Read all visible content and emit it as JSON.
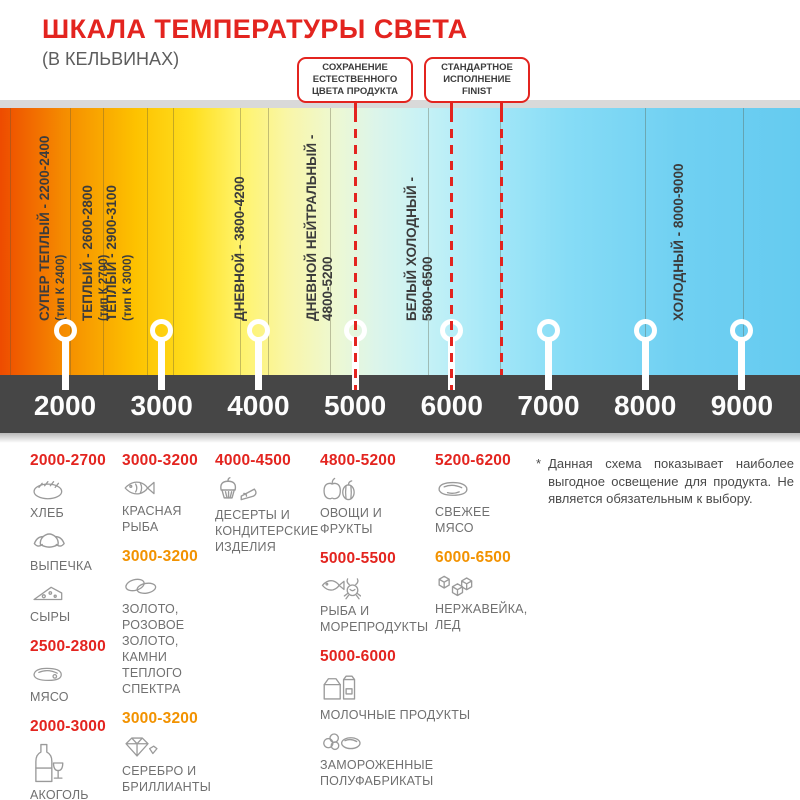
{
  "header": {
    "title": "ШКАЛА ТЕМПЕРАТУРЫ СВЕТА",
    "subtitle": "(В КЕЛЬВИНАХ)"
  },
  "callouts": [
    {
      "text": "СОХРАНЕНИЕ\nЕСТЕСТВЕННОГО\nЦВЕТА ПРОДУКТА"
    },
    {
      "text": "СТАНДАРТНОЕ\nИСПОЛНЕНИЕ\nFINIST"
    }
  ],
  "scale": {
    "unit": "Кельвины",
    "min": 2000,
    "max": 9000,
    "ticks": [
      "2000",
      "3000",
      "4000",
      "5000",
      "6000",
      "7000",
      "8000",
      "9000"
    ],
    "bands": [
      {
        "line1": "СУПЕР ТЕПЛЫЙ - 2200-2400",
        "line2": "(тип К 2400)"
      },
      {
        "line1": "ТЕПЛЫЙ - 2600-2800",
        "line2": "(тип К 2700)"
      },
      {
        "line1": "ТЕПЛЫЙ - 2900-3100",
        "line2": "(тип К 3000)"
      },
      {
        "line1": "ДНЕВНОЙ - 3800-4200",
        "line2": ""
      },
      {
        "line1": "ДНЕВНОЙ НЕЙТРАЛЬНЫЙ -",
        "line2": "4800-5200"
      },
      {
        "line1": "БЕЛЫЙ ХОЛОДНЫЙ -",
        "line2": "5800-6500"
      },
      {
        "line1": "ХОЛОДНЫЙ - 8000-9000",
        "line2": ""
      }
    ],
    "callout_marks_kelvin": [
      5000,
      6000,
      6500
    ]
  },
  "products": {
    "columns": [
      [
        {
          "range": "2000-2700",
          "tone": "red",
          "items": [
            {
              "icon": "bread-icon",
              "label": "ХЛЕБ"
            },
            {
              "icon": "croissant-icon",
              "label": "ВЫПЕЧКА"
            },
            {
              "icon": "cheese-icon",
              "label": "СЫРЫ"
            }
          ]
        },
        {
          "range": "2500-2800",
          "tone": "red",
          "items": [
            {
              "icon": "meat-icon",
              "label": "МЯСО"
            }
          ]
        },
        {
          "range": "2000-3000",
          "tone": "red",
          "items": [
            {
              "icon": "alcohol-icon",
              "label": "АКОГОЛЬ"
            }
          ]
        }
      ],
      [
        {
          "range": "3000-3200",
          "tone": "red",
          "items": [
            {
              "icon": "fish-icon",
              "label": "КРАСНАЯ\nРЫБА"
            }
          ]
        },
        {
          "range": "3000-3200",
          "tone": "orange",
          "items": [
            {
              "icon": "rings-icon",
              "label": "ЗОЛОТО,\nРОЗОВОЕ ЗОЛОТО,\nКАМНИ ТЕПЛОГО\nСПЕКТРА"
            }
          ]
        },
        {
          "range": "3000-3200",
          "tone": "orange",
          "items": [
            {
              "icon": "diamond-icon",
              "label": "СЕРЕБРО И\nБРИЛЛИАНТЫ"
            }
          ]
        }
      ],
      [
        {
          "range": "4000-4500",
          "tone": "red",
          "items": [
            {
              "icon": "desserts-icon",
              "label": "ДЕСЕРТЫ И\nКОНДИТЕРСКИЕ\nИЗДЕЛИЯ"
            }
          ]
        }
      ],
      [
        {
          "range": "4800-5200",
          "tone": "red",
          "items": [
            {
              "icon": "fruits-icon",
              "label": "ОВОЩИ И\nФРУКТЫ"
            }
          ]
        },
        {
          "range": "5000-5500",
          "tone": "red",
          "items": [
            {
              "icon": "seafood-icon",
              "label": "РЫБА И\nМОРЕПРОДУКТЫ"
            }
          ]
        },
        {
          "range": "5000-6000",
          "tone": "red",
          "items": [
            {
              "icon": "dairy-icon",
              "label": "МОЛОЧНЫЕ ПРОДУКТЫ"
            },
            {
              "icon": "frozen-icon",
              "label": "ЗАМОРОЖЕННЫЕ\nПОЛУФАБРИКАТЫ"
            }
          ]
        }
      ],
      [
        {
          "range": "5200-6200",
          "tone": "red",
          "items": [
            {
              "icon": "fresh-meat-icon",
              "label": "СВЕЖЕЕ\nМЯСО"
            }
          ]
        },
        {
          "range": "6000-6500",
          "tone": "orange",
          "items": [
            {
              "icon": "ice-icon",
              "label": "НЕРЖАВЕЙКА,\nЛЕД"
            }
          ]
        }
      ]
    ]
  },
  "footnote": {
    "marker": "*",
    "text": "Данная схема показывает наиболее выгодное освещение для продукта. Не является обязательным к выбору."
  },
  "colors": {
    "accent_red": "#e3241f",
    "accent_orange": "#f29200",
    "bar_dark": "#464646",
    "scale_left": "#ee4b00",
    "scale_right": "#65cbf0"
  }
}
